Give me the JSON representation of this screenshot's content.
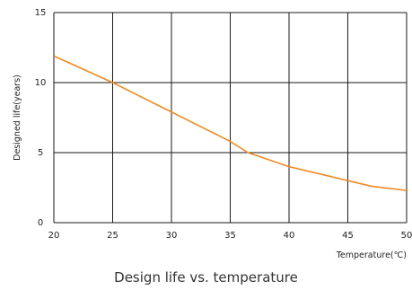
{
  "caption": "Design life vs. temperature",
  "chart_data": {
    "type": "line",
    "xlabel": "Temperature(℃)",
    "ylabel": "Designed life(years)",
    "xlim": [
      20,
      50
    ],
    "ylim": [
      0,
      15
    ],
    "xticks": [
      20,
      25,
      30,
      35,
      40,
      45,
      50
    ],
    "yticks": [
      0,
      5,
      10,
      15
    ],
    "grid": true,
    "series": [
      {
        "color": "#f08a24",
        "x": [
          20,
          25,
          30,
          35,
          36.5,
          40,
          42,
          45,
          47,
          50
        ],
        "y": [
          11.9,
          10.0,
          7.9,
          5.8,
          5.0,
          4.0,
          3.6,
          3.0,
          2.6,
          2.3
        ]
      }
    ]
  }
}
